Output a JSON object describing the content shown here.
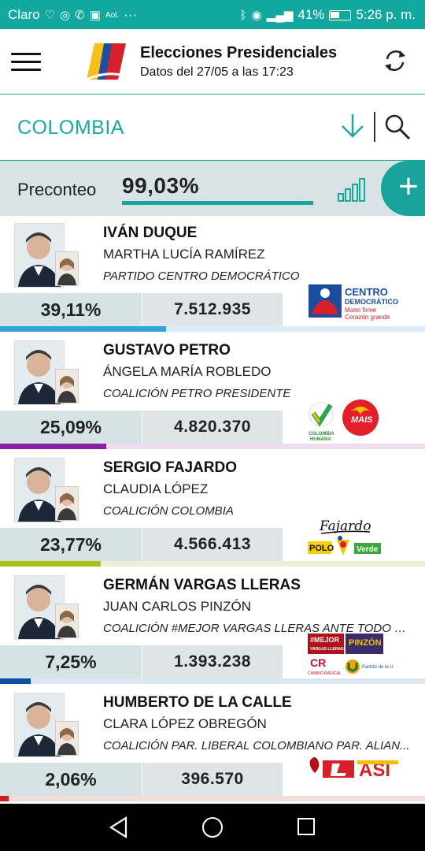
{
  "status": {
    "carrier": "Claro",
    "aol": "Aol.",
    "dots": "···",
    "battery": "41%",
    "time": "5:26 p. m."
  },
  "header": {
    "title": "Elecciones Presidenciales",
    "subtitle": "Datos del 27/05 a las 17:23"
  },
  "country": {
    "name": "COLOMBIA"
  },
  "preconteo": {
    "label": "Preconteo",
    "value": "99,03%",
    "progress": 0.9903
  },
  "candidates": [
    {
      "name": "IVÁN DUQUE",
      "vp": "MARTHA LUCÍA RAMÍREZ",
      "party": "PARTIDO CENTRO DEMOCRÁTICO",
      "pct": "39,11%",
      "votes": "7.512.935",
      "share": 0.3911,
      "color": "#33a3dc",
      "track": "#dcecf6",
      "logo_text": [
        "CENTRO",
        "DEMOCRÁTICO",
        "Mano firme",
        "Corazón grande"
      ]
    },
    {
      "name": "GUSTAVO PETRO",
      "vp": "ÁNGELA MARÍA ROBLEDO",
      "party": "COALICIÓN PETRO PRESIDENTE",
      "pct": "25,09%",
      "votes": "4.820.370",
      "share": 0.2509,
      "color": "#8a1fa6",
      "track": "#f0dcef",
      "logo_text": [
        "COLOMBIA",
        "HUMANA",
        "MAIS"
      ]
    },
    {
      "name": "SERGIO FAJARDO",
      "vp": "CLAUDIA LÓPEZ",
      "party": "COALICIÓN COLOMBIA",
      "pct": "23,77%",
      "votes": "4.566.413",
      "share": 0.2377,
      "color": "#a8c21c",
      "track": "#e9f0d6",
      "logo_text": [
        "Fajardo",
        "POLO",
        "Verde"
      ]
    },
    {
      "name": "GERMÁN VARGAS LLERAS",
      "vp": "JUAN CARLOS PINZÓN",
      "party": "COALICIÓN #MEJOR VARGAS LLERAS ANTE TODO C...",
      "pct": "7,25%",
      "votes": "1.393.238",
      "share": 0.0725,
      "color": "#0b4f9e",
      "track": "#dbe6ef",
      "logo_text": [
        "#MEJOR",
        "VARGAS LLERAS",
        "PINZÓN",
        "CAMBIO RADICAL",
        "Partido de la U"
      ]
    },
    {
      "name": "HUMBERTO DE LA CALLE",
      "vp": "CLARA LÓPEZ OBREGÓN",
      "party": "COALICIÓN PAR. LIBERAL COLOMBIANO PAR. ALIAN...",
      "pct": "2,06%",
      "votes": "396.570",
      "share": 0.0206,
      "color": "#cc1f1f",
      "track": "#f3dcdc",
      "logo_text": [
        "ASI"
      ]
    }
  ],
  "colors": {
    "teal": "#18a49c",
    "status_bar": "#12a89f"
  }
}
